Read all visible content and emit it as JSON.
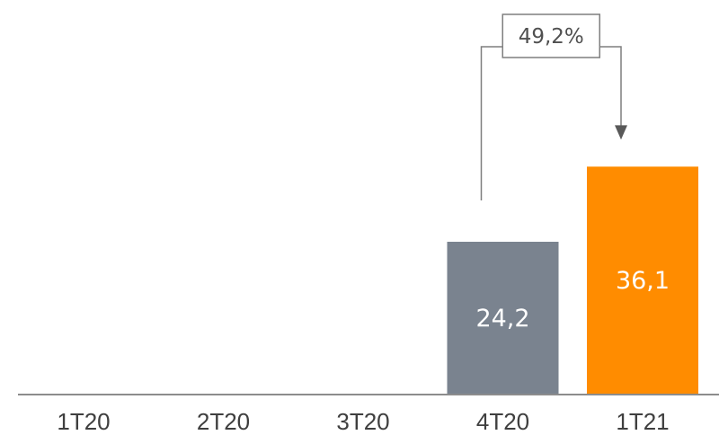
{
  "chart_data": {
    "type": "bar",
    "categories": [
      "1T20",
      "2T20",
      "3T20",
      "4T20",
      "1T21"
    ],
    "values": [
      null,
      null,
      null,
      24.2,
      36.1
    ],
    "value_labels": [
      "",
      "",
      "",
      "24,2",
      "36,1"
    ],
    "bar_colors": [
      "#7a838f",
      "#7a838f",
      "#7a838f",
      "#7a838f",
      "#ff8c00"
    ],
    "ylim": [
      0,
      45
    ],
    "grid": false,
    "annotation": {
      "text": "49,2%",
      "from_category": "4T20",
      "to_category": "1T21"
    },
    "colors": {
      "baseline": "#8c8c8c",
      "connector": "#7f7f7f",
      "arrow": "#595959"
    }
  }
}
